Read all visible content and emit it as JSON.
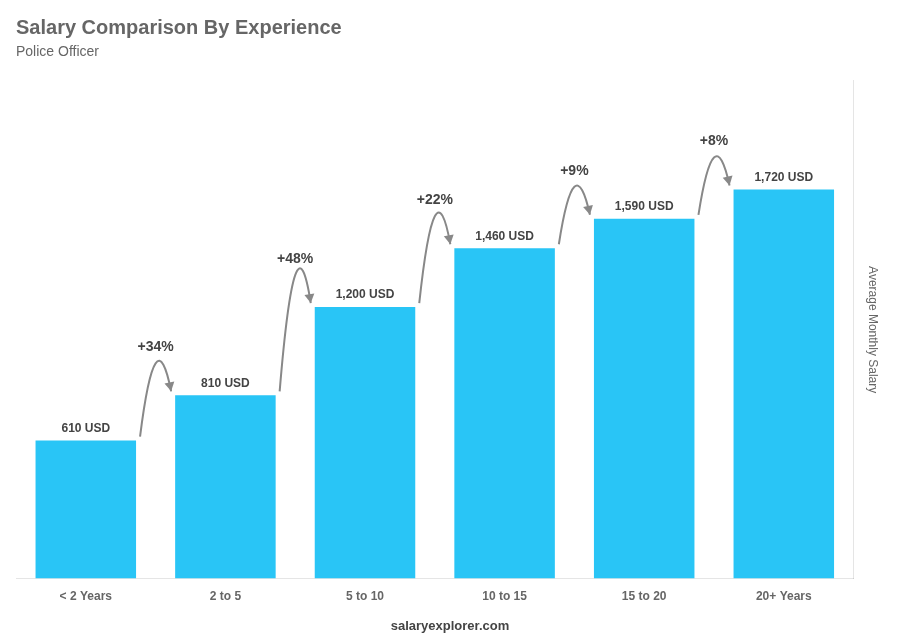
{
  "chart_data": {
    "type": "bar",
    "title": "Salary Comparison By Experience",
    "subtitle": "Police Officer",
    "ylabel": "Average Monthly Salary",
    "categories": [
      "< 2 Years",
      "2 to 5",
      "5 to 10",
      "10 to 15",
      "15 to 20",
      "20+ Years"
    ],
    "values": [
      610,
      810,
      1200,
      1460,
      1590,
      1720
    ],
    "value_labels": [
      "610 USD",
      "810 USD",
      "1,200 USD",
      "1,460 USD",
      "1,590 USD",
      "1,720 USD"
    ],
    "data_labels": true,
    "color": "#29C5F6",
    "ylim": [
      0,
      2200
    ],
    "grid": false,
    "tick_labels": "x",
    "annotations": [
      "+34%",
      "+48%",
      "+22%",
      "+9%",
      "+8%"
    ],
    "footer": [
      "salary",
      "explorer.com"
    ]
  }
}
